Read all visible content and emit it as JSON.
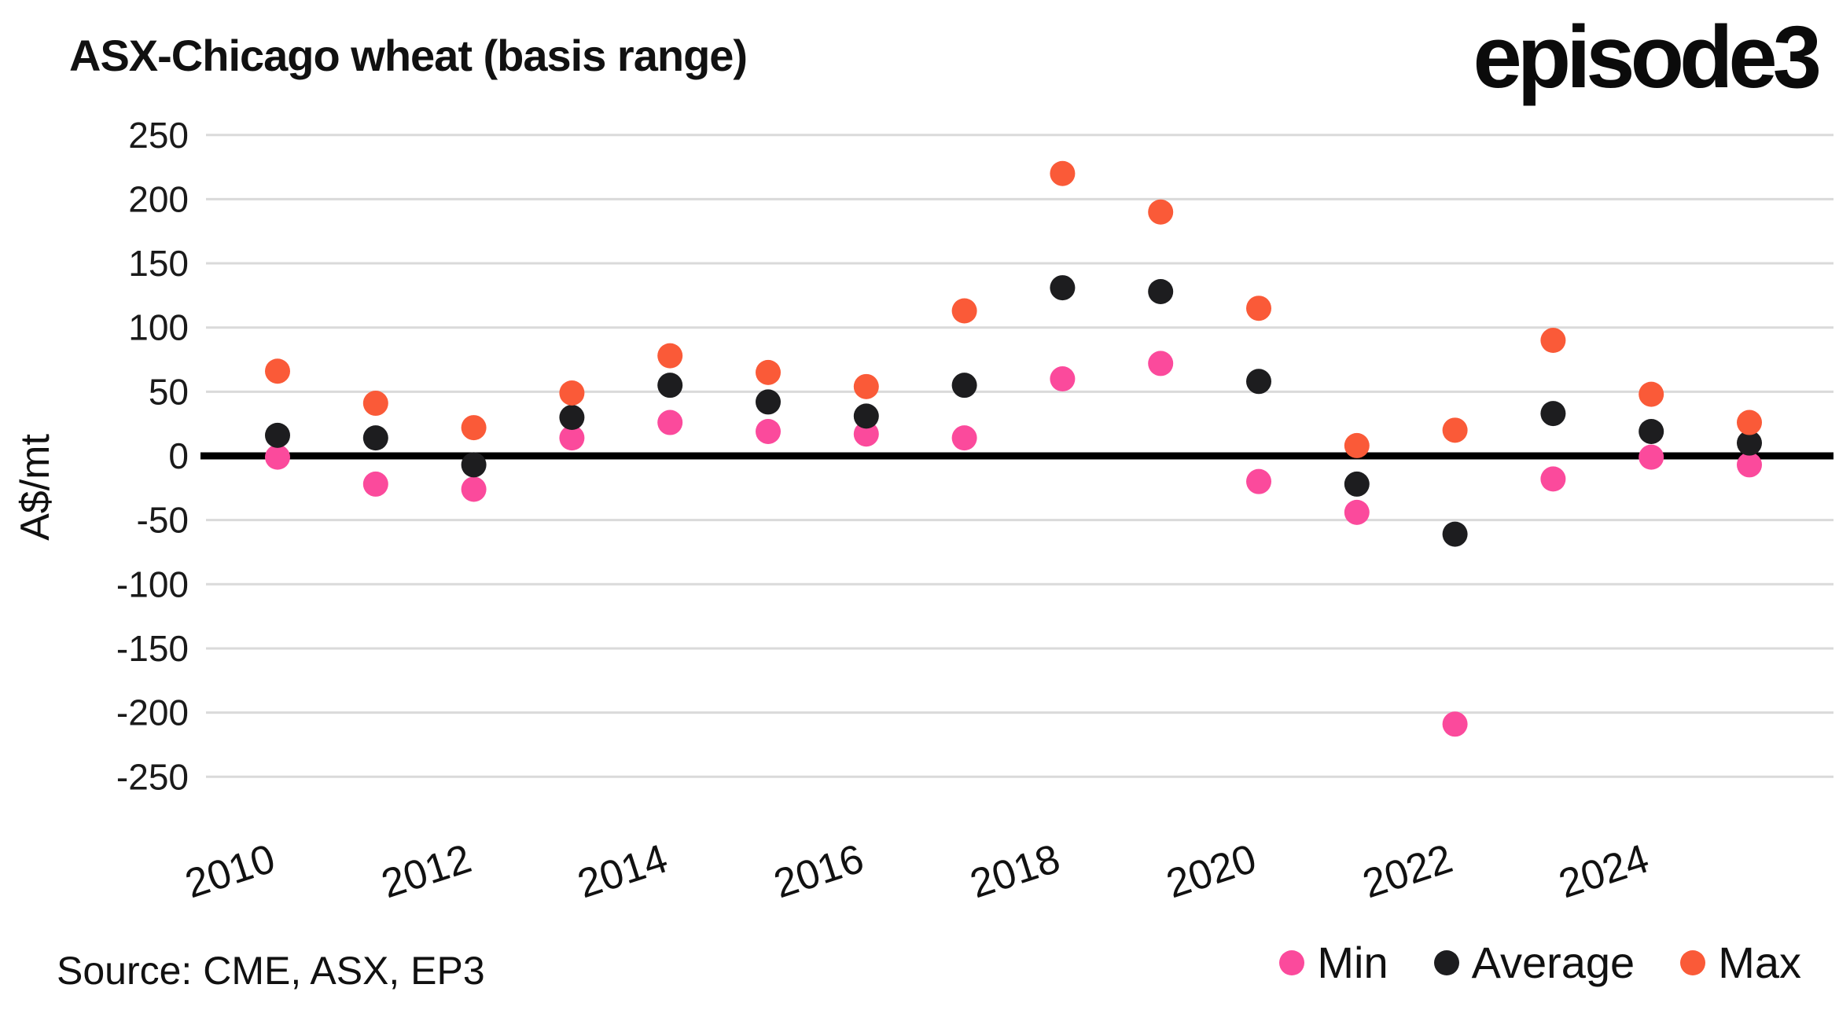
{
  "header": {
    "title": "ASX-Chicago wheat (basis range)",
    "logo": "episode3"
  },
  "chart_data": {
    "type": "scatter",
    "title": "ASX-Chicago wheat (basis range)",
    "xlabel": "",
    "ylabel": "A$/mt",
    "x": [
      2010,
      2011,
      2012,
      2013,
      2014,
      2015,
      2016,
      2017,
      2018,
      2019,
      2020,
      2021,
      2022,
      2023,
      2024,
      2025
    ],
    "series": [
      {
        "name": "Min",
        "color": "#FB4A9C",
        "values": [
          -1,
          -22,
          -26,
          14,
          26,
          19,
          17,
          14,
          60,
          72,
          -20,
          -44,
          -209,
          -18,
          -1,
          -7
        ]
      },
      {
        "name": "Average",
        "color": "#1D1D1F",
        "values": [
          16,
          14,
          -7,
          30,
          55,
          42,
          31,
          55,
          131,
          128,
          58,
          -22,
          -61,
          33,
          19,
          10
        ]
      },
      {
        "name": "Max",
        "color": "#FA5A38",
        "values": [
          66,
          41,
          22,
          49,
          78,
          65,
          54,
          113,
          220,
          190,
          115,
          8,
          20,
          90,
          48,
          26
        ]
      }
    ],
    "ylim": [
      -250,
      250
    ],
    "ytick_step": 50,
    "yticks": [
      250,
      200,
      150,
      100,
      50,
      0,
      -50,
      -100,
      -150,
      -200,
      -250
    ],
    "xticks": [
      2010,
      2012,
      2014,
      2016,
      2018,
      2020,
      2022,
      2024
    ],
    "grid": true,
    "zero_line": true,
    "legend_position": "bottom-right"
  },
  "legend": {
    "items": [
      {
        "label": "Min",
        "color": "#FB4A9C"
      },
      {
        "label": "Average",
        "color": "#1D1D1F"
      },
      {
        "label": "Max",
        "color": "#FA5A38"
      }
    ]
  },
  "footer": {
    "source": "Source: CME, ASX, EP3"
  }
}
